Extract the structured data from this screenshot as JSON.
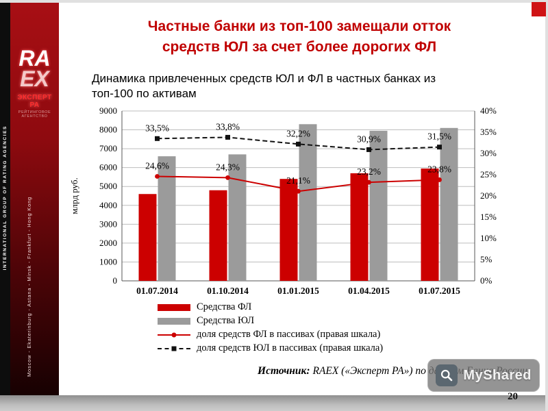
{
  "slide": {
    "title_line1": "Частные банки из топ-100 замещали отток",
    "title_line2": "средств ЮЛ за счет более дорогих ФЛ",
    "subtitle_line1": "Динамика привлеченных средств ЮЛ и ФЛ в частных банках из",
    "subtitle_line2": "топ-100 по активам",
    "source_label": "Источник:",
    "source_text": " RAEX («Эксперт РА») по данным Банка России",
    "page_number": "20",
    "accent_color": "#c00000"
  },
  "sidebar": {
    "vertical_left_text": "INTERNATIONAL GROUP OF RATING AGENCIES",
    "logo_line1": "RA",
    "logo_line2": "EX",
    "logo_name": "ЭКСПЕРТ РА",
    "logo_sub": "РЕЙТИНГОВОЕ АГЕНТСТВО",
    "cities": "Moscow - Ekaterinburg - Astana - Minsk - Frankfurt - Hong Kong"
  },
  "watermark": {
    "text": "MyShared"
  },
  "chart_data": {
    "type": "combo",
    "categories": [
      "01.07.2014",
      "01.10.2014",
      "01.01.2015",
      "01.04.2015",
      "01.07.2015"
    ],
    "bar_series": [
      {
        "name": "Средства ФЛ",
        "color": "#cc0000",
        "axis": "left",
        "values": [
          4600,
          4800,
          5400,
          5700,
          5950
        ]
      },
      {
        "name": "Средства ЮЛ",
        "color": "#9b9b9b",
        "axis": "left",
        "values": [
          6600,
          6700,
          8300,
          7950,
          8100
        ]
      }
    ],
    "line_series": [
      {
        "name": "доля средств ФЛ в пассивах (правая шкала)",
        "color": "#cc0000",
        "style": "solid",
        "marker": "circle",
        "axis": "right",
        "values": [
          24.6,
          24.3,
          21.1,
          23.2,
          23.8
        ],
        "labels": [
          "24,6%",
          "24,3%",
          "21,1%",
          "23,2%",
          "23,8%"
        ]
      },
      {
        "name": "доля средств ЮЛ в пассивах (правая шкала)",
        "color": "#111111",
        "style": "dashed",
        "marker": "square",
        "axis": "right",
        "values": [
          33.5,
          33.8,
          32.2,
          30.9,
          31.5
        ],
        "labels": [
          "33,5%",
          "33,8%",
          "32,2%",
          "30,9%",
          "31,5%"
        ]
      }
    ],
    "left_axis": {
      "min": 0,
      "max": 9000,
      "step": 1000,
      "label": "млрд руб."
    },
    "right_axis": {
      "min": 0,
      "max": 40,
      "step": 5,
      "suffix": "%"
    },
    "grid": "horizontal",
    "legend_position": "bottom"
  }
}
